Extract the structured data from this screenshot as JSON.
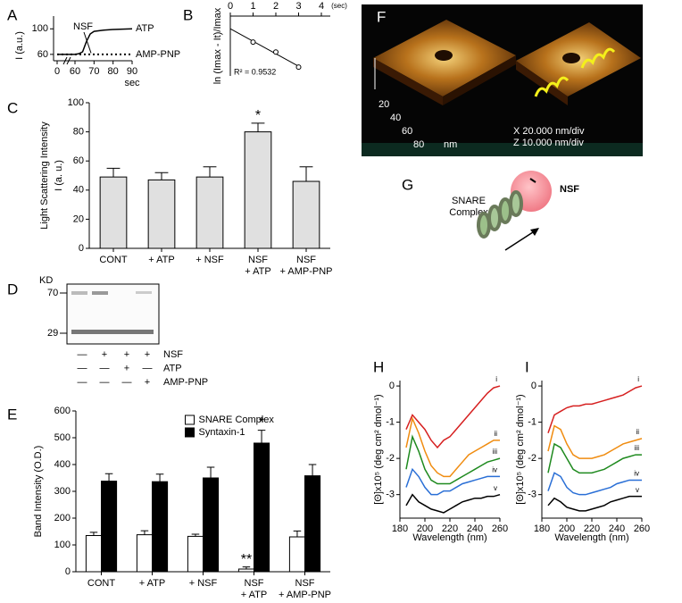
{
  "chart_data": [
    {
      "label": "A",
      "type": "line",
      "ylabel": "I (a.u.)",
      "xlabel": "sec",
      "annotations": [
        "NSF"
      ],
      "xlim": [
        0,
        90
      ],
      "xticks": [
        0,
        60,
        70,
        80,
        90
      ],
      "ylim": [
        50,
        120
      ],
      "yticks": [
        60,
        100
      ],
      "series": [
        {
          "name": "ATP",
          "color": "#000000",
          "style": "solid",
          "x": [
            0,
            60,
            62,
            64,
            66,
            68,
            70,
            75,
            80,
            90
          ],
          "values": [
            60,
            60,
            61,
            64,
            80,
            92,
            96,
            98,
            99,
            100
          ]
        },
        {
          "name": "AMP-PNP",
          "color": "#000000",
          "style": "dotted",
          "x": [
            0,
            60,
            65,
            70,
            75,
            80,
            85,
            90
          ],
          "values": [
            60,
            60,
            60,
            60,
            60,
            60,
            60,
            60
          ]
        }
      ]
    },
    {
      "label": "B",
      "type": "scatter",
      "xlabel": "(sec)",
      "ylabel": "ln (Imax - It)/Imax",
      "annotations": [
        "R² = 0.9532"
      ],
      "xlim": [
        0,
        4
      ],
      "xticks": [
        0,
        1,
        2,
        3,
        4
      ],
      "ylim": [
        -1.6,
        0.1
      ],
      "fit": true,
      "color": "#000000",
      "x": [
        1,
        2,
        3
      ],
      "values": [
        -0.64,
        -0.92,
        -1.35
      ]
    },
    {
      "label": "C",
      "type": "bar",
      "ylabel": "Light Scattering Intensity",
      "ylabel2": "I (a. u.)",
      "annotations": [
        "*"
      ],
      "categories": [
        "CONT",
        "+ ATP",
        "+ NSF",
        "NSF\n+ ATP",
        "NSF\n+ AMP-PNP"
      ],
      "values": [
        49,
        47,
        49,
        80,
        46
      ],
      "errors": [
        6,
        5,
        7,
        6,
        10
      ],
      "color": "#e0e0e0",
      "ylim": [
        0,
        100
      ],
      "yticks": [
        0,
        20,
        40,
        60,
        80,
        100
      ]
    },
    {
      "label": "E",
      "type": "bar",
      "ylabel": "Band Intensity (O.D.)",
      "annotations": [
        "**",
        "*"
      ],
      "legend": "top",
      "categories": [
        "CONT",
        "+ ATP",
        "+ NSF",
        "NSF\n+ ATP",
        "NSF\n+ AMP-PNP"
      ],
      "series": [
        {
          "name": "SNARE Complex",
          "color": "#ffffff",
          "values": [
            135,
            138,
            132,
            10,
            130
          ],
          "errors": [
            12,
            15,
            8,
            8,
            22
          ]
        },
        {
          "name": "Syntaxin-1",
          "color": "#000000",
          "values": [
            338,
            336,
            350,
            480,
            358
          ],
          "errors": [
            28,
            28,
            40,
            48,
            42
          ]
        }
      ],
      "ylim": [
        0,
        600
      ],
      "yticks": [
        0,
        100,
        200,
        300,
        400,
        500,
        600
      ]
    },
    {
      "label": "H",
      "type": "line",
      "xlabel": "Wavelength (nm)",
      "ylabel": "[Θ]x10⁵ (deg cm² dmol⁻¹)",
      "xlim": [
        180,
        260
      ],
      "xticks": [
        180,
        200,
        220,
        240,
        260
      ],
      "ylim": [
        -3.65,
        0.15
      ],
      "yticks": [
        0,
        -1,
        -2,
        -3
      ],
      "x": [
        185,
        190,
        195,
        200,
        205,
        210,
        215,
        220,
        225,
        230,
        235,
        240,
        245,
        250,
        255,
        260
      ],
      "series": [
        {
          "name": "i",
          "color": "#d62020",
          "values": [
            -1.2,
            -0.8,
            -1.0,
            -1.2,
            -1.5,
            -1.7,
            -1.5,
            -1.4,
            -1.2,
            -1.0,
            -0.8,
            -0.6,
            -0.4,
            -0.2,
            -0.05,
            0
          ]
        },
        {
          "name": "ii",
          "color": "#f08c10",
          "values": [
            -1.7,
            -0.9,
            -1.3,
            -1.8,
            -2.2,
            -2.4,
            -2.5,
            -2.5,
            -2.3,
            -2.1,
            -1.9,
            -1.8,
            -1.7,
            -1.6,
            -1.5,
            -1.5
          ]
        },
        {
          "name": "iii",
          "color": "#1f8a1f",
          "values": [
            -2.3,
            -1.4,
            -1.8,
            -2.3,
            -2.6,
            -2.7,
            -2.7,
            -2.7,
            -2.6,
            -2.5,
            -2.4,
            -2.3,
            -2.2,
            -2.1,
            -2.05,
            -2.0
          ]
        },
        {
          "name": "iv",
          "color": "#2a6fd6",
          "values": [
            -2.8,
            -2.3,
            -2.5,
            -2.8,
            -3.0,
            -3.0,
            -2.9,
            -2.9,
            -2.8,
            -2.7,
            -2.65,
            -2.6,
            -2.55,
            -2.5,
            -2.5,
            -2.5
          ]
        },
        {
          "name": "v",
          "color": "#000000",
          "values": [
            -3.3,
            -3.0,
            -3.2,
            -3.3,
            -3.4,
            -3.45,
            -3.5,
            -3.4,
            -3.3,
            -3.2,
            -3.15,
            -3.1,
            -3.1,
            -3.05,
            -3.05,
            -3.0
          ]
        }
      ]
    },
    {
      "label": "I",
      "type": "line",
      "xlabel": "Wavelength (nm)",
      "ylabel": "[Θ]x10⁵ (deg cm² dmol⁻¹)",
      "xlim": [
        180,
        260
      ],
      "xticks": [
        180,
        200,
        220,
        240,
        260
      ],
      "ylim": [
        -3.65,
        0.15
      ],
      "yticks": [
        0,
        -1,
        -2,
        -3
      ],
      "x": [
        185,
        190,
        195,
        200,
        205,
        210,
        215,
        220,
        225,
        230,
        235,
        240,
        245,
        250,
        255,
        260
      ],
      "series": [
        {
          "name": "i",
          "color": "#d62020",
          "values": [
            -1.3,
            -0.8,
            -0.7,
            -0.6,
            -0.55,
            -0.55,
            -0.5,
            -0.5,
            -0.45,
            -0.4,
            -0.35,
            -0.3,
            -0.25,
            -0.15,
            -0.05,
            0
          ]
        },
        {
          "name": "ii",
          "color": "#f08c10",
          "values": [
            -1.8,
            -1.1,
            -1.2,
            -1.6,
            -1.9,
            -2.0,
            -2.0,
            -2.0,
            -1.95,
            -1.9,
            -1.8,
            -1.7,
            -1.6,
            -1.55,
            -1.5,
            -1.45
          ]
        },
        {
          "name": "iii",
          "color": "#1f8a1f",
          "values": [
            -2.4,
            -1.6,
            -1.7,
            -2.0,
            -2.3,
            -2.4,
            -2.4,
            -2.4,
            -2.35,
            -2.3,
            -2.2,
            -2.1,
            -2.0,
            -1.95,
            -1.9,
            -1.9
          ]
        },
        {
          "name": "iv",
          "color": "#2a6fd6",
          "values": [
            -2.9,
            -2.4,
            -2.5,
            -2.8,
            -2.95,
            -3.0,
            -3.0,
            -2.95,
            -2.9,
            -2.85,
            -2.8,
            -2.7,
            -2.65,
            -2.6,
            -2.6,
            -2.6
          ]
        },
        {
          "name": "v",
          "color": "#000000",
          "values": [
            -3.3,
            -3.1,
            -3.2,
            -3.35,
            -3.4,
            -3.45,
            -3.45,
            -3.4,
            -3.35,
            -3.3,
            -3.2,
            -3.15,
            -3.1,
            -3.05,
            -3.05,
            -3.05
          ]
        }
      ]
    }
  ],
  "gel": {
    "label": "D",
    "unit": "KD",
    "markers": [
      70,
      29
    ],
    "treatments": [
      {
        "name": "NSF",
        "signs": [
          "—",
          "+",
          "+",
          "+"
        ]
      },
      {
        "name": "ATP",
        "signs": [
          "—",
          "—",
          "+",
          "—"
        ]
      },
      {
        "name": "AMP-PNP",
        "signs": [
          "—",
          "—",
          "—",
          "+"
        ]
      }
    ]
  },
  "afm": {
    "label": "F",
    "axis_ticks": [
      20,
      40,
      60,
      80
    ],
    "axis_unit": "nm",
    "scales": [
      "X 20.000 nm/div",
      "Z 10.000 nm/div"
    ]
  },
  "diagram": {
    "label": "G",
    "complex": "SNARE\nComplex",
    "partner": "NSF"
  }
}
